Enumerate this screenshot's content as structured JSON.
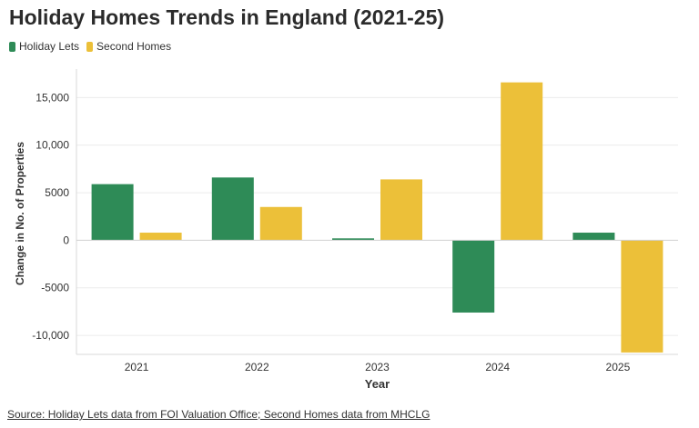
{
  "chart_data": {
    "type": "bar",
    "title": "Holiday Homes Trends in England (2021-25)",
    "xlabel": "Year",
    "ylabel": "Change in No. of Properties",
    "categories": [
      "2021",
      "2022",
      "2023",
      "2024",
      "2025"
    ],
    "series": [
      {
        "name": "Holiday Lets",
        "color": "#2e8b57",
        "values": [
          5900,
          6600,
          200,
          -7600,
          800
        ]
      },
      {
        "name": "Second Homes",
        "color": "#ecc039",
        "values": [
          800,
          3500,
          6400,
          16600,
          -11800
        ]
      }
    ],
    "ylim": [
      -12000,
      18000
    ],
    "yticks": [
      {
        "value": 15000,
        "label": "15,000"
      },
      {
        "value": 10000,
        "label": "10,000"
      },
      {
        "value": 5000,
        "label": "5000"
      },
      {
        "value": 0,
        "label": "0"
      },
      {
        "value": -5000,
        "label": "-5000"
      },
      {
        "value": -10000,
        "label": "-10,000"
      }
    ],
    "grid": true,
    "legend_position": "top-left"
  },
  "source": "Source: Holiday Lets data from FOI Valuation Office; Second Homes data from MHCLG"
}
